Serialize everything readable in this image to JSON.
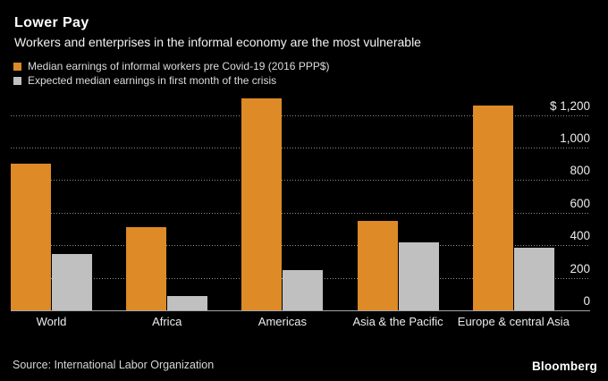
{
  "header": {
    "title": "Lower Pay",
    "subtitle": "Workers and enterprises in the informal economy are the most vulnerable"
  },
  "chart_data": {
    "type": "bar",
    "categories": [
      "World",
      "Africa",
      "Americas",
      "Asia & the Pacific",
      "Europe & central Asia"
    ],
    "series": [
      {
        "name": "Median earnings of informal workers pre Covid-19 (2016 PPP$)",
        "color": "#dd8a27",
        "values": [
          900,
          510,
          1300,
          550,
          1260
        ]
      },
      {
        "name": "Expected median earnings in first month of the crisis",
        "color": "#c0c0c0",
        "values": [
          345,
          90,
          245,
          420,
          385
        ]
      }
    ],
    "ylim": [
      0,
      1310
    ],
    "yticks": [
      0,
      200,
      400,
      600,
      800,
      1000,
      1200
    ],
    "ytick_labels": [
      "0",
      "200",
      "400",
      "600",
      "800",
      "1,000",
      "$ 1,200"
    ],
    "grid": "dotted-horizontal",
    "legend_position": "top-left",
    "xlabel": "",
    "ylabel": ""
  },
  "footer": {
    "source": "Source: International Labor Organization",
    "brand": "Bloomberg"
  },
  "colors": {
    "background": "#000000",
    "bar_orange": "#dd8a27",
    "bar_gray": "#c0c0c0",
    "gridline": "#8f8f8f",
    "axis_line": "#a6a6a6",
    "text_primary": "#ffffff",
    "text_secondary": "#ececec"
  }
}
